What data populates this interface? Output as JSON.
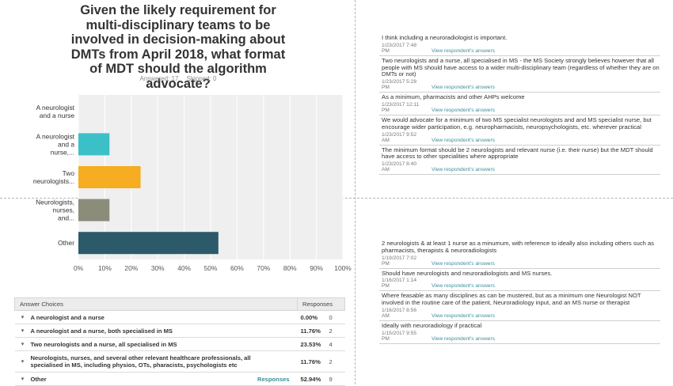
{
  "question": {
    "title": "Given the likely requirement for multi-disciplinary teams to be involved in decision-making about DMTs from April 2018, what format of MDT should the algorithm advocate?",
    "answered": "Answered: 17",
    "skipped": "Skipped: 0"
  },
  "chart_data": {
    "type": "bar",
    "orientation": "horizontal",
    "categories": [
      "A neurologist and a nurse",
      "A neurologist and a nurse,...",
      "Two neurologists...",
      "Neurologists, nurses, and...",
      "Other"
    ],
    "values": [
      0,
      11.76,
      23.53,
      11.76,
      52.94
    ],
    "colors": [
      "#2e9fb3",
      "#3cc0c8",
      "#f6ad22",
      "#8c8c7b",
      "#2c5a6b"
    ],
    "x_ticks": [
      "0%",
      "10%",
      "20%",
      "30%",
      "40%",
      "50%",
      "60%",
      "70%",
      "80%",
      "90%",
      "100%"
    ],
    "xlim": [
      0,
      100
    ],
    "grid": true
  },
  "table": {
    "header_choices": "Answer Choices",
    "header_responses": "Responses",
    "rows": [
      {
        "choice": "A neurologist and a nurse",
        "pct": "0.00%",
        "count": "0",
        "link": ""
      },
      {
        "choice": "A neurologist and a nurse, both specialised in MS",
        "pct": "11.76%",
        "count": "2",
        "link": ""
      },
      {
        "choice": "Two neurologists and a nurse, all specialised in MS",
        "pct": "23.53%",
        "count": "4",
        "link": ""
      },
      {
        "choice": "Neurologists, nurses, and several other relevant healthcare professionals, all specialised in MS, including physios, OTs, pharacists, psychologists etc",
        "pct": "11.76%",
        "count": "2",
        "link": ""
      },
      {
        "choice": "Other",
        "pct": "52.94%",
        "count": "9",
        "link": "Responses"
      }
    ]
  },
  "comments_top": [
    {
      "text": "I think including a neuroradiologist is important.",
      "date": "1/23/2017 7:48 PM",
      "link": "View respondent's answers"
    },
    {
      "text": "Two neurologists and a nurse, all specialised in MS - the MS Society strongly believes however that all people with MS should have access to a wider multi-disciplinary team (regardless of whether they are on DMTs or not)",
      "date": "1/23/2017 5:28 PM",
      "link": "View respondent's answers"
    },
    {
      "text": "As a minimum, pharmacists and other AHPs welcome",
      "date": "1/23/2017 12:11 PM",
      "link": "View respondent's answers"
    },
    {
      "text": "We would advocate for a minimum of two MS specialist neurologists and and MS specialist nurse, but encourage wider participation, e.g. neuropharmacists, neuropsychologists, etc. wherever practical",
      "date": "1/23/2017 9:52 AM",
      "link": "View respondent's answers"
    },
    {
      "text": "The minimum format should be 2 neurologists and relevant nurse (i.e. their nurse) but the MDT should have access to other specialities where appropriate",
      "date": "1/23/2017 8:40 AM",
      "link": "View respondent's answers"
    }
  ],
  "comments_bottom": [
    {
      "text": "2 neurologists & at least 1 nurse as a minumum, with reference to ideally also including others such as pharmacists, therapists & neuroradiologists",
      "date": "1/19/2017 7:02 PM",
      "link": "View respondent's answers"
    },
    {
      "text": "Should have neurologists and neuroradiologists and MS nurses.",
      "date": "1/16/2017 1:14 PM",
      "link": "View respondent's answers"
    },
    {
      "text": "Where feasable as many disciplines as can be mustered, but as a minimum one Neurologist NOT involved in the routine care of the patient, Neuroradiology input, and an MS nurse or therapist",
      "date": "1/16/2017 8:56 AM",
      "link": "View respondent's answers"
    },
    {
      "text": "Ideally with neuroradiology if practical",
      "date": "1/15/2017 9:55 PM",
      "link": "View respondent's answers"
    }
  ]
}
